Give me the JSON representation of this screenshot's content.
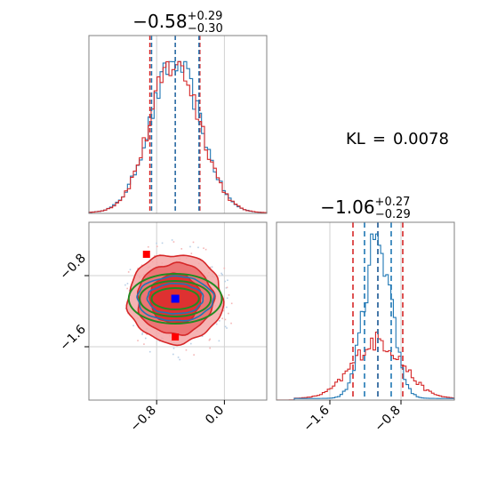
{
  "colors": {
    "series_a": "#d62728",
    "series_b": "#1f77b4",
    "truth": "#0000ff",
    "fit": "#228b22",
    "frame": "#808080",
    "grid": "#d0d0d0"
  },
  "kl": {
    "label": "KL",
    "eq": "=",
    "value": "0.0078"
  },
  "chart_data": [
    {
      "type": "histogram",
      "panel": "top-left",
      "title": {
        "main": "−0.58",
        "sup": "+0.29",
        "sub": "−0.30"
      },
      "xlim": [
        -1.6,
        0.5
      ],
      "x_ticks": [
        -0.8,
        0.0
      ],
      "mean": -0.58,
      "std": 0.295,
      "quantile_lines": {
        "series_a": [
          -0.88,
          -0.58,
          -0.29
        ],
        "series_b": [
          -0.86,
          -0.58,
          -0.3
        ]
      },
      "series": [
        {
          "color": "series_b"
        },
        {
          "color": "series_a"
        }
      ]
    },
    {
      "type": "histogram",
      "panel": "bottom-right",
      "title": {
        "main": "−1.06",
        "sup": "+0.27",
        "sub": "−0.29"
      },
      "xlim": [
        -2.2,
        -0.2
      ],
      "x_ticks": [
        -1.6,
        -0.8
      ],
      "x_tick_labels": [
        "−1.6",
        "−0.8"
      ],
      "series": [
        {
          "color": "series_a",
          "mean": -1.06,
          "std": 0.28,
          "quantile_lines": [
            -1.34,
            -1.06,
            -0.78
          ]
        },
        {
          "color": "series_b",
          "mean": -1.06,
          "std": 0.15,
          "quantile_lines": [
            -1.21,
            -1.06,
            -0.91
          ]
        }
      ]
    },
    {
      "type": "contour",
      "panel": "bottom-left",
      "xlim": [
        -1.6,
        0.5
      ],
      "ylim": [
        -2.2,
        -0.2
      ],
      "x_ticks": [
        -0.8,
        0.0
      ],
      "x_tick_labels": [
        "−0.8",
        "0.0"
      ],
      "y_ticks": [
        -1.6,
        -0.8
      ],
      "y_tick_labels": [
        "−1.6",
        "−0.8"
      ],
      "center": [
        -0.58,
        -1.06
      ],
      "red_levels": [
        {
          "rx": 0.56,
          "ry": 0.5
        },
        {
          "rx": 0.45,
          "ry": 0.4
        },
        {
          "rx": 0.3,
          "ry": 0.28
        }
      ],
      "blue_levels": [
        {
          "rx": 0.45,
          "ry": 0.25
        },
        {
          "rx": 0.33,
          "ry": 0.17
        }
      ],
      "green_levels": [
        {
          "rx": 0.55,
          "ry": 0.28
        },
        {
          "rx": 0.42,
          "ry": 0.2
        },
        {
          "rx": 0.28,
          "ry": 0.12
        }
      ],
      "red_points": [
        [
          -0.92,
          -0.56
        ],
        [
          -0.58,
          -1.49
        ]
      ],
      "blue_point": [
        -0.58,
        -1.06
      ]
    }
  ]
}
